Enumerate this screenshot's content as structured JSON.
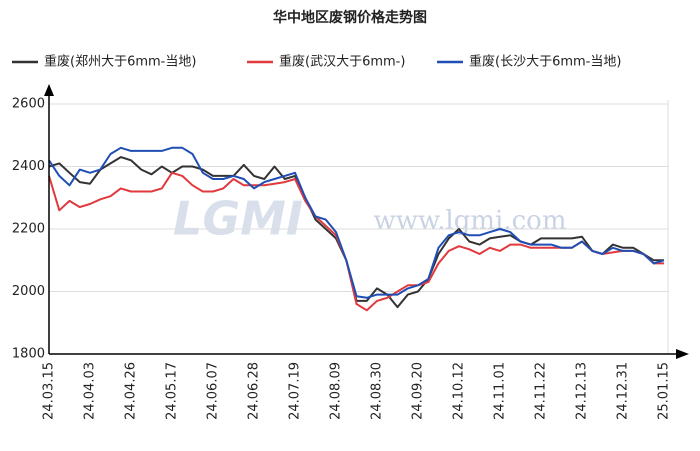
{
  "chart_data": {
    "type": "line",
    "title": "华中地区废钢价格走势图",
    "annotations": [
      "LGMI",
      "www.lgmi.com"
    ],
    "categories": [
      "24.03.15",
      null,
      null,
      null,
      "24.04.03",
      null,
      null,
      null,
      "24.04.26",
      null,
      null,
      null,
      "24.05.17",
      null,
      null,
      null,
      "24.06.07",
      null,
      null,
      null,
      "24.06.28",
      null,
      null,
      null,
      "24.07.19",
      null,
      null,
      null,
      "24.08.09",
      null,
      null,
      null,
      "24.08.30",
      null,
      null,
      null,
      "24.09.20",
      null,
      null,
      null,
      "24.10.12",
      null,
      null,
      null,
      "24.11.01",
      null,
      null,
      null,
      "24.11.22",
      null,
      null,
      null,
      "24.12.13",
      null,
      null,
      null,
      "24.12.31",
      null,
      null,
      null,
      "25.01.15"
    ],
    "series": [
      {
        "name": "重废(郑州大于6mm-当地)",
        "color": "#333333",
        "values": [
          2400,
          2410,
          2380,
          2350,
          2345,
          2390,
          2410,
          2430,
          2420,
          2390,
          2375,
          2400,
          2380,
          2400,
          2400,
          2390,
          2370,
          2370,
          2370,
          2405,
          2370,
          2360,
          2400,
          2360,
          2370,
          2300,
          2230,
          2200,
          2170,
          2100,
          1970,
          1970,
          2010,
          1990,
          1950,
          1990,
          2000,
          2040,
          2120,
          2170,
          2200,
          2160,
          2150,
          2170,
          2175,
          2180,
          2160,
          2150,
          2170,
          2170,
          2170,
          2170,
          2175,
          2130,
          2120,
          2150,
          2140,
          2140,
          2120,
          2100,
          2100
        ]
      },
      {
        "name": "重废(武汉大于6mm-)",
        "color": "#e0393e",
        "values": [
          2370,
          2260,
          2290,
          2270,
          2280,
          2295,
          2305,
          2330,
          2320,
          2320,
          2320,
          2330,
          2380,
          2370,
          2340,
          2320,
          2320,
          2330,
          2360,
          2340,
          2340,
          2340,
          2345,
          2350,
          2360,
          2290,
          2240,
          2210,
          2180,
          2100,
          1960,
          1940,
          1970,
          1980,
          2000,
          2020,
          2020,
          2030,
          2090,
          2130,
          2145,
          2135,
          2120,
          2140,
          2130,
          2150,
          2150,
          2140,
          2140,
          2140,
          2140,
          2140,
          2160,
          2130,
          2120,
          2125,
          2130,
          2130,
          2120,
          2090,
          2090
        ]
      },
      {
        "name": "重废(长沙大于6mm-当地)",
        "color": "#1f4fb4",
        "values": [
          2420,
          2370,
          2340,
          2390,
          2380,
          2390,
          2440,
          2460,
          2450,
          2450,
          2450,
          2450,
          2460,
          2460,
          2440,
          2380,
          2360,
          2360,
          2370,
          2360,
          2330,
          2350,
          2360,
          2370,
          2380,
          2300,
          2240,
          2230,
          2190,
          2100,
          1985,
          1980,
          1990,
          1990,
          1990,
          2010,
          2020,
          2040,
          2140,
          2180,
          2190,
          2180,
          2180,
          2190,
          2200,
          2190,
          2160,
          2150,
          2150,
          2150,
          2140,
          2140,
          2160,
          2130,
          2120,
          2140,
          2130,
          2130,
          2120,
          2090,
          2100
        ]
      }
    ],
    "ylim": [
      1800,
      2600
    ],
    "yticks": [
      1800,
      2000,
      2200,
      2400,
      2600
    ],
    "grid": true
  }
}
